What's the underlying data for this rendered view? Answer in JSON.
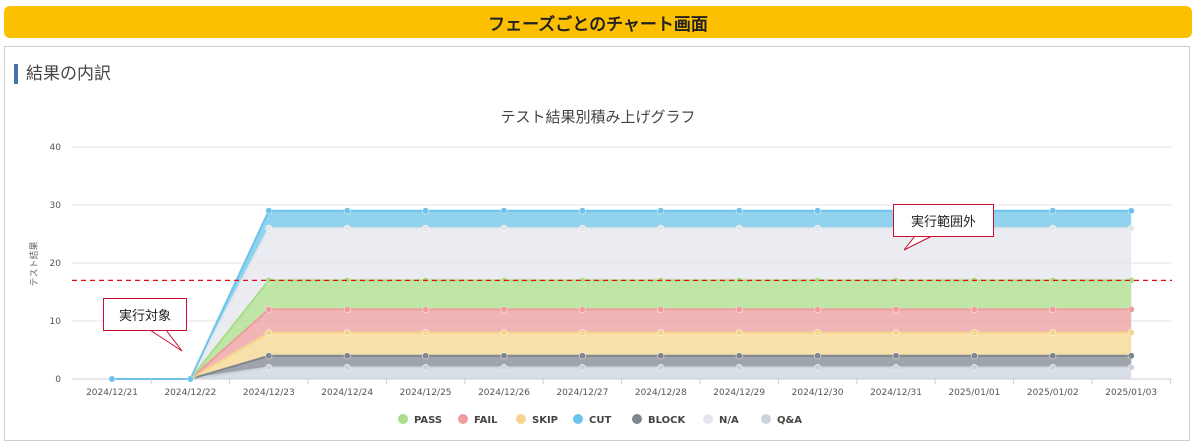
{
  "banner_title": "フェーズごとのチャート画面",
  "section_title": "結果の内訳",
  "callouts": {
    "executed": "実行対象",
    "out_of_range": "実行範囲外"
  },
  "chart_data": {
    "type": "area",
    "stacked": true,
    "title": "テスト結果別積み上げグラフ",
    "xlabel": "",
    "ylabel": "テスト結果",
    "ylim": [
      0,
      40
    ],
    "yticks": [
      0,
      10,
      20,
      30,
      40
    ],
    "grid": true,
    "legend_position": "bottom",
    "reference_line": {
      "value": 17,
      "color": "#e01010",
      "style": "dashed"
    },
    "categories": [
      "2024/12/21",
      "2024/12/22",
      "2024/12/23",
      "2024/12/24",
      "2024/12/25",
      "2024/12/26",
      "2024/12/27",
      "2024/12/28",
      "2024/12/29",
      "2024/12/30",
      "2024/12/31",
      "2025/01/01",
      "2025/01/02",
      "2025/01/03"
    ],
    "series": [
      {
        "name": "Q&A",
        "color": "#cbd3de",
        "values": [
          0,
          0,
          2,
          2,
          2,
          2,
          2,
          2,
          2,
          2,
          2,
          2,
          2,
          2
        ]
      },
      {
        "name": "BLOCK",
        "color": "#7f868e",
        "values": [
          0,
          0,
          2,
          2,
          2,
          2,
          2,
          2,
          2,
          2,
          2,
          2,
          2,
          2
        ]
      },
      {
        "name": "SKIP",
        "color": "#f5d58e",
        "values": [
          0,
          0,
          4,
          4,
          4,
          4,
          4,
          4,
          4,
          4,
          4,
          4,
          4,
          4
        ]
      },
      {
        "name": "FAIL",
        "color": "#ee9c9c",
        "values": [
          0,
          0,
          4,
          4,
          4,
          4,
          4,
          4,
          4,
          4,
          4,
          4,
          4,
          4
        ]
      },
      {
        "name": "PASS",
        "color": "#a9dd8a",
        "values": [
          0,
          0,
          5,
          5,
          5,
          5,
          5,
          5,
          5,
          5,
          5,
          5,
          5,
          5
        ]
      },
      {
        "name": "N/A",
        "color": "#e3e6ec",
        "values": [
          0,
          0,
          9,
          9,
          9,
          9,
          9,
          9,
          9,
          9,
          9,
          9,
          9,
          9
        ]
      },
      {
        "name": "CUT",
        "color": "#6cc4ea",
        "values": [
          0,
          0,
          3,
          3,
          3,
          3,
          3,
          3,
          3,
          3,
          3,
          3,
          3,
          3
        ]
      }
    ],
    "legend_order": [
      "PASS",
      "FAIL",
      "SKIP",
      "CUT",
      "BLOCK",
      "N/A",
      "Q&A"
    ]
  }
}
